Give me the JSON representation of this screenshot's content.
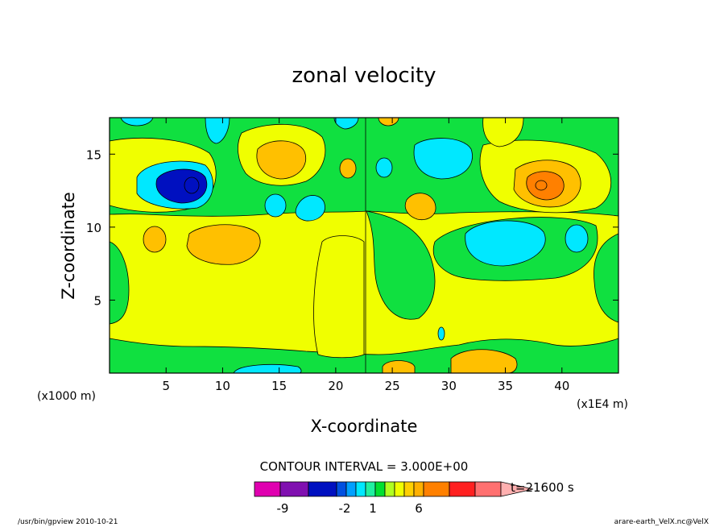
{
  "chart_data": {
    "type": "contour",
    "title": "zonal velocity",
    "xlabel": "X-coordinate",
    "ylabel": "Z-coordinate",
    "x_unit_label": "(x1E4 m)",
    "y_unit_label": "(x1000 m)",
    "xlim": [
      0,
      45
    ],
    "ylim": [
      0,
      17.5
    ],
    "x_ticks": [
      "5",
      "10",
      "15",
      "20",
      "25",
      "30",
      "35",
      "40"
    ],
    "y_ticks": [
      "5",
      "10",
      "15"
    ],
    "contour_interval_label": "CONTOUR INTERVAL = 3.000E+00",
    "colorbar": {
      "tick_labels": [
        "-9",
        "-2",
        "1",
        "6"
      ],
      "colors": [
        "#e000b0",
        "#8010b0",
        "#0010c0",
        "#0050e0",
        "#00a0ff",
        "#00e8ff",
        "#20f0a0",
        "#00e030",
        "#b0ff20",
        "#f0ff00",
        "#ffd000",
        "#ffb000",
        "#ff8000",
        "#ff2020",
        "#ff7070",
        "#ffb0b0"
      ]
    },
    "time_label": "t=21600 s",
    "regions": [
      {
        "level": "cyan",
        "x": 7,
        "z": 13.5,
        "note": "negative core"
      },
      {
        "level": "blue",
        "x": 7,
        "z": 13.1
      },
      {
        "level": "orange",
        "x": 38.5,
        "z": 13.3,
        "note": "positive core"
      },
      {
        "level": "cyan",
        "x": 32,
        "z": 9.8
      },
      {
        "level": "orange-light",
        "x": 9.5,
        "z": 9.8
      },
      {
        "level": "orange-light",
        "x": 16.5,
        "z": 14.7
      },
      {
        "level": "cyan",
        "x": 28.5,
        "z": 14.7
      }
    ]
  },
  "footer": {
    "left": "/usr/bin/gpview  2010-10-21",
    "right": "arare-earth_VelX.nc@VelX"
  }
}
